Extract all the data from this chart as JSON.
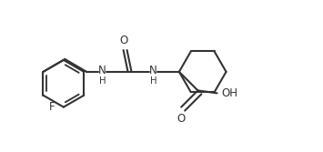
{
  "bg_color": "#ffffff",
  "line_color": "#333333",
  "line_width": 1.5,
  "font_size": 8.5,
  "fig_width": 3.55,
  "fig_height": 1.67,
  "dpi": 100,
  "xlim": [
    0.0,
    10.2
  ],
  "ylim": [
    0.5,
    5.5
  ]
}
